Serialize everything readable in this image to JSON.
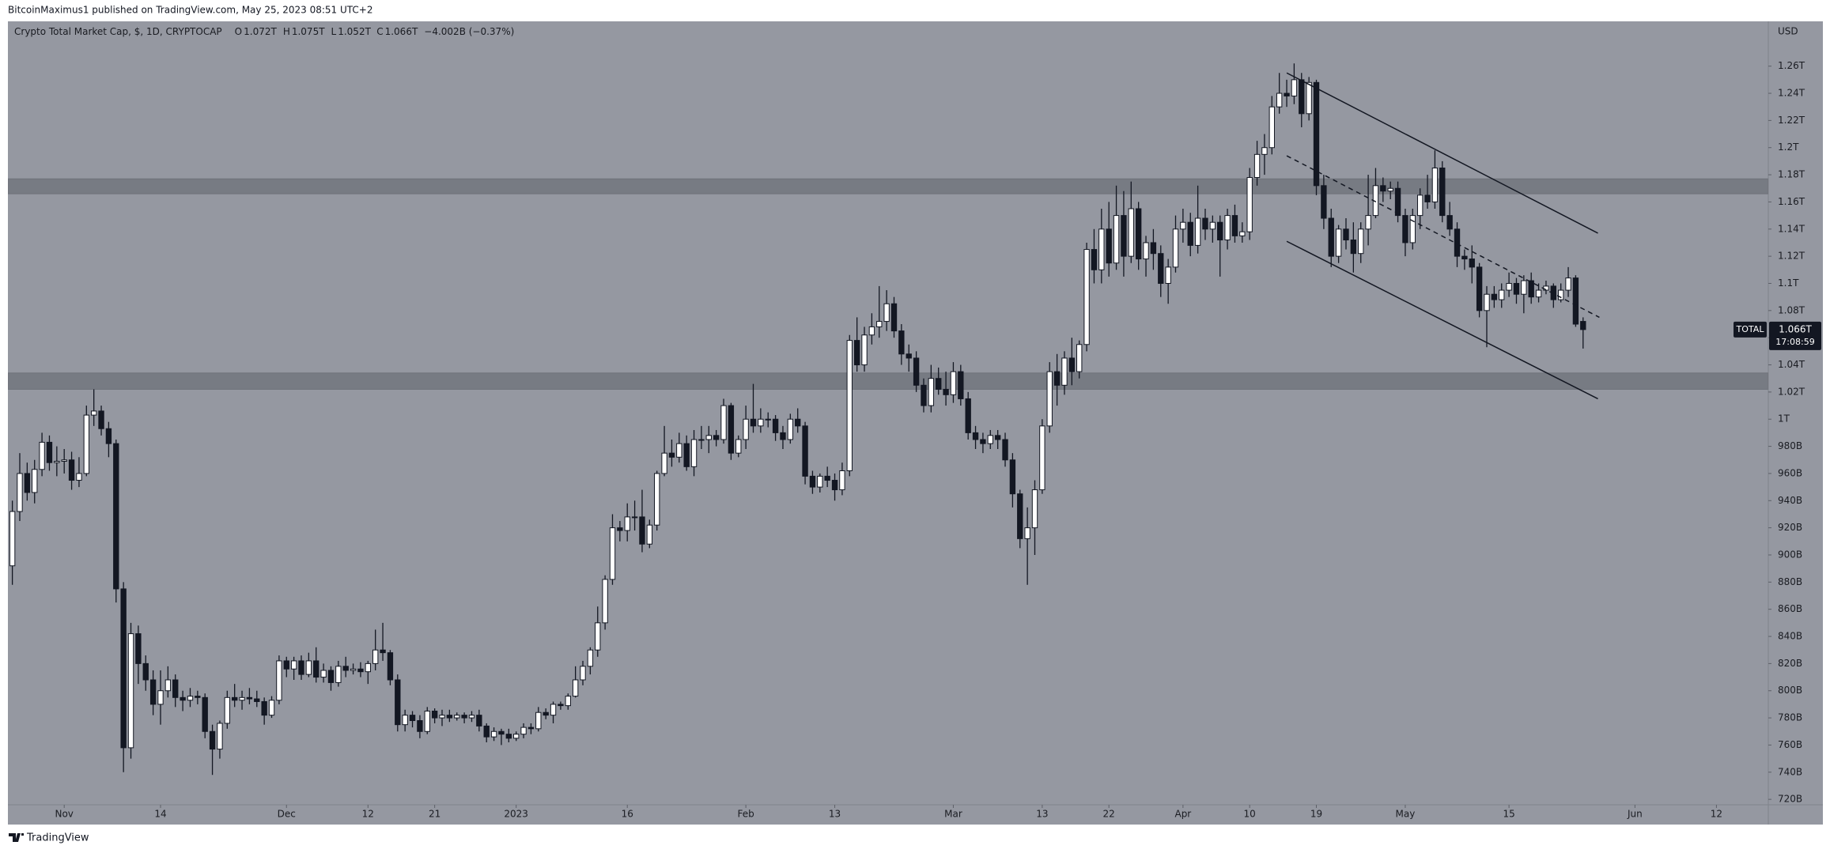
{
  "header": {
    "attribution": "BitcoinMaximus1 published on TradingView.com, May 25, 2023 08:51 UTC+2"
  },
  "footer": {
    "brand": "TradingView"
  },
  "chart_data": {
    "type": "candlestick",
    "title": "Crypto Total Market Cap, $, 1D, CRYPTOCAP",
    "ohlc_legend": [
      {
        "key": "O",
        "value": "1.072T"
      },
      {
        "key": "H",
        "value": "1.075T"
      },
      {
        "key": "L",
        "value": "1.052T"
      },
      {
        "key": "C",
        "value": "1.066T"
      }
    ],
    "change": "−4.002B (−0.37%)",
    "currency": "USD",
    "up_color": "#ffffff",
    "down_color": "#131722",
    "background": "#9598a1",
    "open": [
      892,
      932,
      960,
      946,
      963,
      983,
      968,
      969,
      970,
      955,
      960,
      1003,
      1006,
      993,
      982,
      875,
      758,
      842,
      820,
      808,
      790,
      800,
      808,
      795,
      793,
      796,
      795,
      770,
      757,
      776,
      795,
      793,
      795,
      794,
      792,
      782,
      793,
      822,
      816,
      822,
      812,
      822,
      810,
      815,
      806,
      818,
      815,
      816,
      814,
      820,
      830,
      828,
      808,
      775,
      782,
      778,
      770,
      785,
      780,
      782,
      780,
      782,
      780,
      782,
      774,
      766,
      770,
      768,
      765,
      768,
      773,
      772,
      784,
      782,
      790,
      789,
      796,
      808,
      818,
      830,
      850,
      882,
      920,
      918,
      928,
      928,
      908,
      922,
      960,
      975,
      972,
      982,
      965,
      985,
      985,
      988,
      985,
      1010,
      975,
      985,
      1000,
      995,
      1000,
      1000,
      990,
      985,
      1000,
      995,
      958,
      950,
      958,
      955,
      948,
      962,
      1058,
      1040,
      1062,
      1068,
      1072,
      1085,
      1065,
      1048,
      1045,
      1025,
      1010,
      1030,
      1022,
      1018,
      1035,
      1015,
      990,
      985,
      982,
      988,
      985,
      970,
      945,
      912,
      920,
      948,
      995,
      1035,
      1025,
      1045,
      1035,
      1055,
      1125,
      1110,
      1140,
      1115,
      1150,
      1120,
      1155,
      1118,
      1130,
      1122,
      1100,
      1112,
      1140,
      1145,
      1128,
      1148,
      1140,
      1145,
      1132,
      1150,
      1135,
      1138,
      1178,
      1195,
      1200,
      1230,
      1240,
      1238,
      1250,
      1225,
      1248,
      1172,
      1148,
      1120,
      1140,
      1132,
      1122,
      1140,
      1150,
      1172,
      1168,
      1170,
      1150,
      1130,
      1150,
      1165,
      1160,
      1185,
      1150,
      1140,
      1120,
      1118,
      1112,
      1080,
      1092,
      1088,
      1095,
      1100,
      1092,
      1102,
      1090,
      1095,
      1098,
      1088,
      1095,
      1104,
      1072
    ],
    "high": [
      940,
      975,
      968,
      970,
      990,
      988,
      980,
      978,
      976,
      972,
      1010,
      1022,
      1010,
      998,
      985,
      880,
      850,
      848,
      826,
      815,
      815,
      818,
      812,
      800,
      802,
      800,
      798,
      775,
      778,
      800,
      805,
      800,
      802,
      800,
      795,
      796,
      826,
      825,
      825,
      826,
      828,
      832,
      820,
      818,
      822,
      825,
      820,
      821,
      822,
      845,
      850,
      830,
      812,
      786,
      785,
      782,
      788,
      787,
      786,
      786,
      784,
      784,
      785,
      786,
      776,
      773,
      772,
      772,
      770,
      776,
      776,
      788,
      787,
      792,
      792,
      798,
      818,
      822,
      832,
      862,
      885,
      930,
      925,
      938,
      940,
      948,
      926,
      962,
      995,
      985,
      990,
      988,
      992,
      995,
      995,
      992,
      1015,
      1012,
      988,
      1010,
      1026,
      1008,
      1005,
      1003,
      995,
      1004,
      1008,
      998,
      962,
      960,
      965,
      960,
      968,
      1062,
      1075,
      1068,
      1078,
      1098,
      1095,
      1090,
      1070,
      1055,
      1050,
      1030,
      1040,
      1038,
      1035,
      1042,
      1040,
      1020,
      995,
      990,
      992,
      992,
      990,
      975,
      948,
      935,
      955,
      1000,
      1042,
      1048,
      1050,
      1060,
      1058,
      1130,
      1140,
      1155,
      1160,
      1172,
      1168,
      1175,
      1160,
      1135,
      1140,
      1128,
      1118,
      1150,
      1155,
      1152,
      1172,
      1155,
      1150,
      1150,
      1155,
      1158,
      1145,
      1185,
      1205,
      1210,
      1238,
      1255,
      1250,
      1262,
      1255,
      1252,
      1250,
      1180,
      1155,
      1143,
      1148,
      1145,
      1145,
      1180,
      1185,
      1178,
      1175,
      1175,
      1155,
      1155,
      1170,
      1180,
      1198,
      1190,
      1160,
      1145,
      1125,
      1128,
      1115,
      1098,
      1098,
      1100,
      1108,
      1104,
      1106,
      1108,
      1100,
      1102,
      1100,
      1100,
      1112,
      1106,
      1075
    ],
    "low": [
      878,
      925,
      940,
      938,
      958,
      962,
      958,
      960,
      948,
      950,
      958,
      995,
      988,
      972,
      865,
      740,
      750,
      805,
      800,
      782,
      775,
      795,
      788,
      785,
      788,
      790,
      765,
      738,
      750,
      772,
      788,
      786,
      790,
      788,
      775,
      780,
      790,
      810,
      808,
      808,
      810,
      806,
      806,
      800,
      803,
      810,
      812,
      810,
      805,
      815,
      822,
      804,
      770,
      770,
      773,
      765,
      768,
      776,
      774,
      777,
      778,
      776,
      777,
      770,
      762,
      763,
      760,
      762,
      763,
      765,
      768,
      770,
      779,
      776,
      786,
      786,
      795,
      804,
      812,
      825,
      845,
      878,
      910,
      910,
      918,
      902,
      905,
      918,
      958,
      965,
      968,
      962,
      958,
      978,
      975,
      980,
      982,
      970,
      972,
      978,
      990,
      990,
      994,
      984,
      978,
      982,
      990,
      952,
      945,
      946,
      950,
      940,
      944,
      958,
      1035,
      1035,
      1055,
      1060,
      1065,
      1060,
      1040,
      1035,
      1020,
      1005,
      1005,
      1018,
      1010,
      1012,
      1010,
      985,
      978,
      975,
      978,
      978,
      965,
      935,
      905,
      878,
      900,
      945,
      990,
      1010,
      1018,
      1025,
      1030,
      1050,
      1100,
      1100,
      1105,
      1110,
      1105,
      1115,
      1110,
      1105,
      1110,
      1090,
      1085,
      1108,
      1130,
      1120,
      1122,
      1132,
      1130,
      1105,
      1125,
      1130,
      1130,
      1132,
      1172,
      1180,
      1195,
      1225,
      1230,
      1232,
      1215,
      1220,
      1165,
      1140,
      1112,
      1115,
      1125,
      1108,
      1115,
      1128,
      1148,
      1160,
      1162,
      1145,
      1120,
      1125,
      1140,
      1155,
      1155,
      1145,
      1135,
      1112,
      1110,
      1100,
      1075,
      1053,
      1082,
      1082,
      1090,
      1085,
      1078,
      1085,
      1086,
      1092,
      1082,
      1086,
      1090,
      1068,
      1052
    ],
    "close": [
      932,
      960,
      946,
      963,
      983,
      968,
      969,
      970,
      955,
      960,
      1003,
      1006,
      993,
      982,
      875,
      758,
      842,
      820,
      808,
      790,
      800,
      808,
      795,
      793,
      796,
      795,
      770,
      757,
      776,
      795,
      793,
      795,
      794,
      792,
      782,
      793,
      822,
      816,
      822,
      812,
      822,
      810,
      815,
      806,
      818,
      815,
      816,
      814,
      820,
      830,
      828,
      808,
      775,
      782,
      778,
      770,
      785,
      780,
      782,
      780,
      782,
      780,
      782,
      774,
      766,
      770,
      768,
      765,
      768,
      773,
      772,
      784,
      782,
      790,
      789,
      796,
      808,
      818,
      830,
      850,
      882,
      920,
      918,
      928,
      928,
      908,
      922,
      960,
      975,
      972,
      982,
      965,
      985,
      985,
      988,
      985,
      1010,
      975,
      985,
      1000,
      995,
      1000,
      1000,
      990,
      985,
      1000,
      995,
      958,
      950,
      958,
      955,
      948,
      962,
      1058,
      1040,
      1062,
      1068,
      1072,
      1085,
      1065,
      1048,
      1045,
      1025,
      1010,
      1030,
      1022,
      1018,
      1035,
      1015,
      990,
      985,
      982,
      988,
      985,
      970,
      945,
      912,
      920,
      948,
      995,
      1035,
      1025,
      1045,
      1035,
      1055,
      1125,
      1110,
      1140,
      1115,
      1150,
      1120,
      1155,
      1118,
      1130,
      1122,
      1100,
      1112,
      1140,
      1145,
      1128,
      1148,
      1140,
      1145,
      1132,
      1150,
      1135,
      1138,
      1178,
      1195,
      1200,
      1230,
      1240,
      1238,
      1250,
      1225,
      1248,
      1172,
      1148,
      1120,
      1140,
      1132,
      1122,
      1140,
      1150,
      1172,
      1168,
      1170,
      1150,
      1130,
      1150,
      1165,
      1160,
      1185,
      1150,
      1140,
      1120,
      1118,
      1112,
      1080,
      1092,
      1088,
      1095,
      1100,
      1092,
      1102,
      1090,
      1095,
      1098,
      1088,
      1095,
      1104,
      1070,
      1066
    ],
    "xlim": [
      -0.6,
      237
    ],
    "xticks": [
      {
        "value": 7,
        "label": "Nov"
      },
      {
        "value": 20,
        "label": "14"
      },
      {
        "value": 37,
        "label": "Dec"
      },
      {
        "value": 48,
        "label": "12"
      },
      {
        "value": 57,
        "label": "21"
      },
      {
        "value": 68,
        "label": "2023"
      },
      {
        "value": 83,
        "label": "16"
      },
      {
        "value": 99,
        "label": "Feb"
      },
      {
        "value": 111,
        "label": "13"
      },
      {
        "value": 127,
        "label": "Mar"
      },
      {
        "value": 139,
        "label": "13"
      },
      {
        "value": 148,
        "label": "22"
      },
      {
        "value": 158,
        "label": "Apr"
      },
      {
        "value": 167,
        "label": "10"
      },
      {
        "value": 176,
        "label": "19"
      },
      {
        "value": 188,
        "label": "May"
      },
      {
        "value": 202,
        "label": "15"
      },
      {
        "value": 219,
        "label": "Jun"
      },
      {
        "value": 230,
        "label": "12"
      }
    ],
    "ylim": [
      716,
      1293
    ],
    "yticks": [
      {
        "value": 720,
        "label": "720B"
      },
      {
        "value": 740,
        "label": "740B"
      },
      {
        "value": 760,
        "label": "760B"
      },
      {
        "value": 780,
        "label": "780B"
      },
      {
        "value": 800,
        "label": "800B"
      },
      {
        "value": 820,
        "label": "820B"
      },
      {
        "value": 840,
        "label": "840B"
      },
      {
        "value": 860,
        "label": "860B"
      },
      {
        "value": 880,
        "label": "880B"
      },
      {
        "value": 900,
        "label": "900B"
      },
      {
        "value": 920,
        "label": "920B"
      },
      {
        "value": 940,
        "label": "940B"
      },
      {
        "value": 960,
        "label": "960B"
      },
      {
        "value": 980,
        "label": "980B"
      },
      {
        "value": 1000,
        "label": "1T"
      },
      {
        "value": 1020,
        "label": "1.02T"
      },
      {
        "value": 1040,
        "label": "1.04T"
      },
      {
        "value": 1060,
        "label": "1.06T"
      },
      {
        "value": 1080,
        "label": "1.08T"
      },
      {
        "value": 1100,
        "label": "1.1T"
      },
      {
        "value": 1120,
        "label": "1.12T"
      },
      {
        "value": 1140,
        "label": "1.14T"
      },
      {
        "value": 1160,
        "label": "1.16T"
      },
      {
        "value": 1180,
        "label": "1.18T"
      },
      {
        "value": 1200,
        "label": "1.2T"
      },
      {
        "value": 1220,
        "label": "1.22T"
      },
      {
        "value": 1240,
        "label": "1.24T"
      },
      {
        "value": 1260,
        "label": "1.26T"
      }
    ],
    "zones": [
      {
        "range": [
          1166,
          1177
        ]
      },
      {
        "range": [
          1022,
          1034
        ]
      }
    ],
    "trendlines": [
      {
        "x": [
          172,
          214
        ],
        "y": [
          1255,
          1137
        ],
        "style": "solid"
      },
      {
        "x": [
          172,
          214
        ],
        "y": [
          1131,
          1015
        ],
        "style": "solid"
      },
      {
        "x": [
          172,
          214.2
        ],
        "y": [
          1194,
          1075
        ],
        "style": "dashed"
      }
    ],
    "last_price": {
      "symbol": "TOTAL",
      "value": 1066,
      "label": "1.066T",
      "countdown": "17:08:59"
    }
  }
}
